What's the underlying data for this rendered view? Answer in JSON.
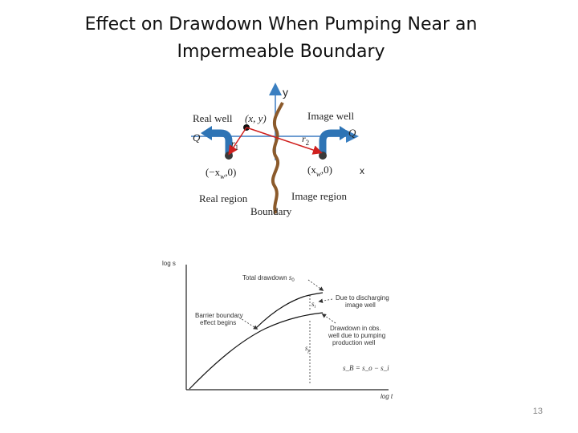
{
  "slide": {
    "title_line1": "Effect on Drawdown When Pumping Near an",
    "title_line2": "Impermeable Boundary",
    "page_number": "13"
  },
  "top_diagram": {
    "y_axis_label": "y",
    "x_axis_label": "x",
    "real_well_label": "Real well",
    "image_well_label": "Image well",
    "point_label": "(x, y)",
    "q_left": "Q",
    "q_right": "Q",
    "r1_label": "r",
    "r1_sub": "1",
    "r2_label": "r",
    "r2_sub": "2",
    "real_coord": "(−x",
    "real_coord_sub": "w",
    "real_coord_end": ",0)",
    "image_coord": "(x",
    "image_coord_sub": "w",
    "image_coord_end": ",0)",
    "real_region_label": "Real region",
    "image_region_label": "Image region",
    "boundary_label": "Boundary",
    "colors": {
      "axis": "#3a7fc1",
      "arrow": "#2e74b5",
      "r_line": "#d0201e",
      "boundary": "#8b5a2b"
    }
  },
  "bottom_diagram": {
    "y_axis_label": "log s",
    "x_axis_label": "log t",
    "total_drawdown_label": "Total drawdown",
    "total_drawdown_sym": "s",
    "total_drawdown_sub": "0",
    "si_sym": "s",
    "si_sub": "i",
    "sp_sym": "s",
    "sp_sub": "p",
    "discharging_line1": "Due to discharging",
    "discharging_line2": "image well",
    "barrier_line1": "Barrier boundary",
    "barrier_line2": "effect begins",
    "obs_line1": "Drawdown in obs.",
    "obs_line2": "well due to pumping",
    "obs_line3": "production well",
    "equation": "s_B = s_o − s_i"
  }
}
